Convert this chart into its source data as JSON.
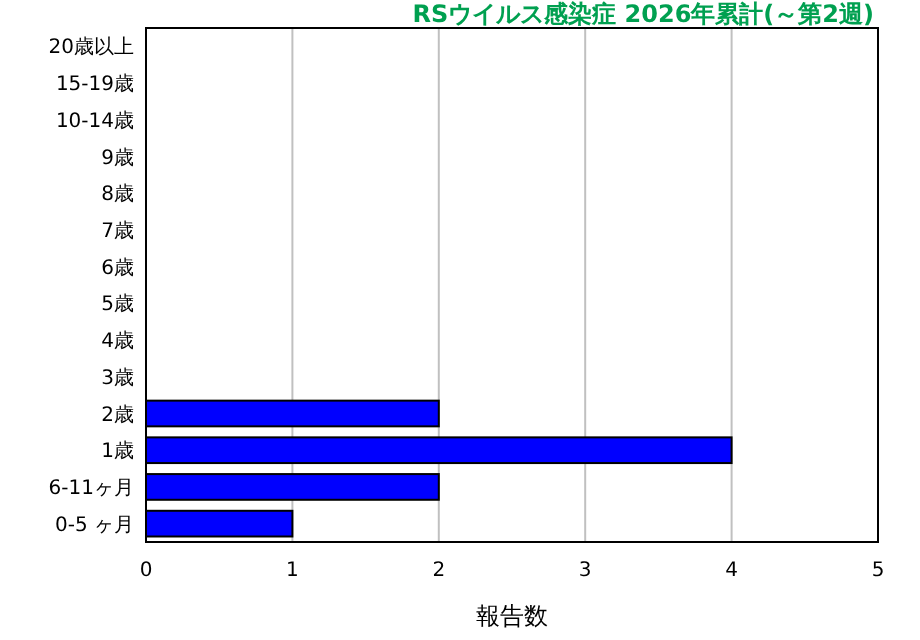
{
  "chart_data": {
    "type": "bar",
    "orientation": "horizontal",
    "title": "RSウイルス感染症 2026年累計(～第2週)",
    "xlabel": "報告数",
    "categories": [
      "20歳以上",
      "15-19歳",
      "10-14歳",
      "9歳",
      "8歳",
      "7歳",
      "6歳",
      "5歳",
      "4歳",
      "3歳",
      "2歳",
      "1歳",
      "6-11ヶ月",
      "0-5 ヶ月"
    ],
    "values": [
      0,
      0,
      0,
      0,
      0,
      0,
      0,
      0,
      0,
      0,
      2,
      4,
      2,
      1
    ],
    "color": "#0000ff",
    "xlim": [
      0,
      5
    ],
    "xticks": [
      0,
      1,
      2,
      3,
      4,
      5
    ],
    "grid": "x"
  }
}
